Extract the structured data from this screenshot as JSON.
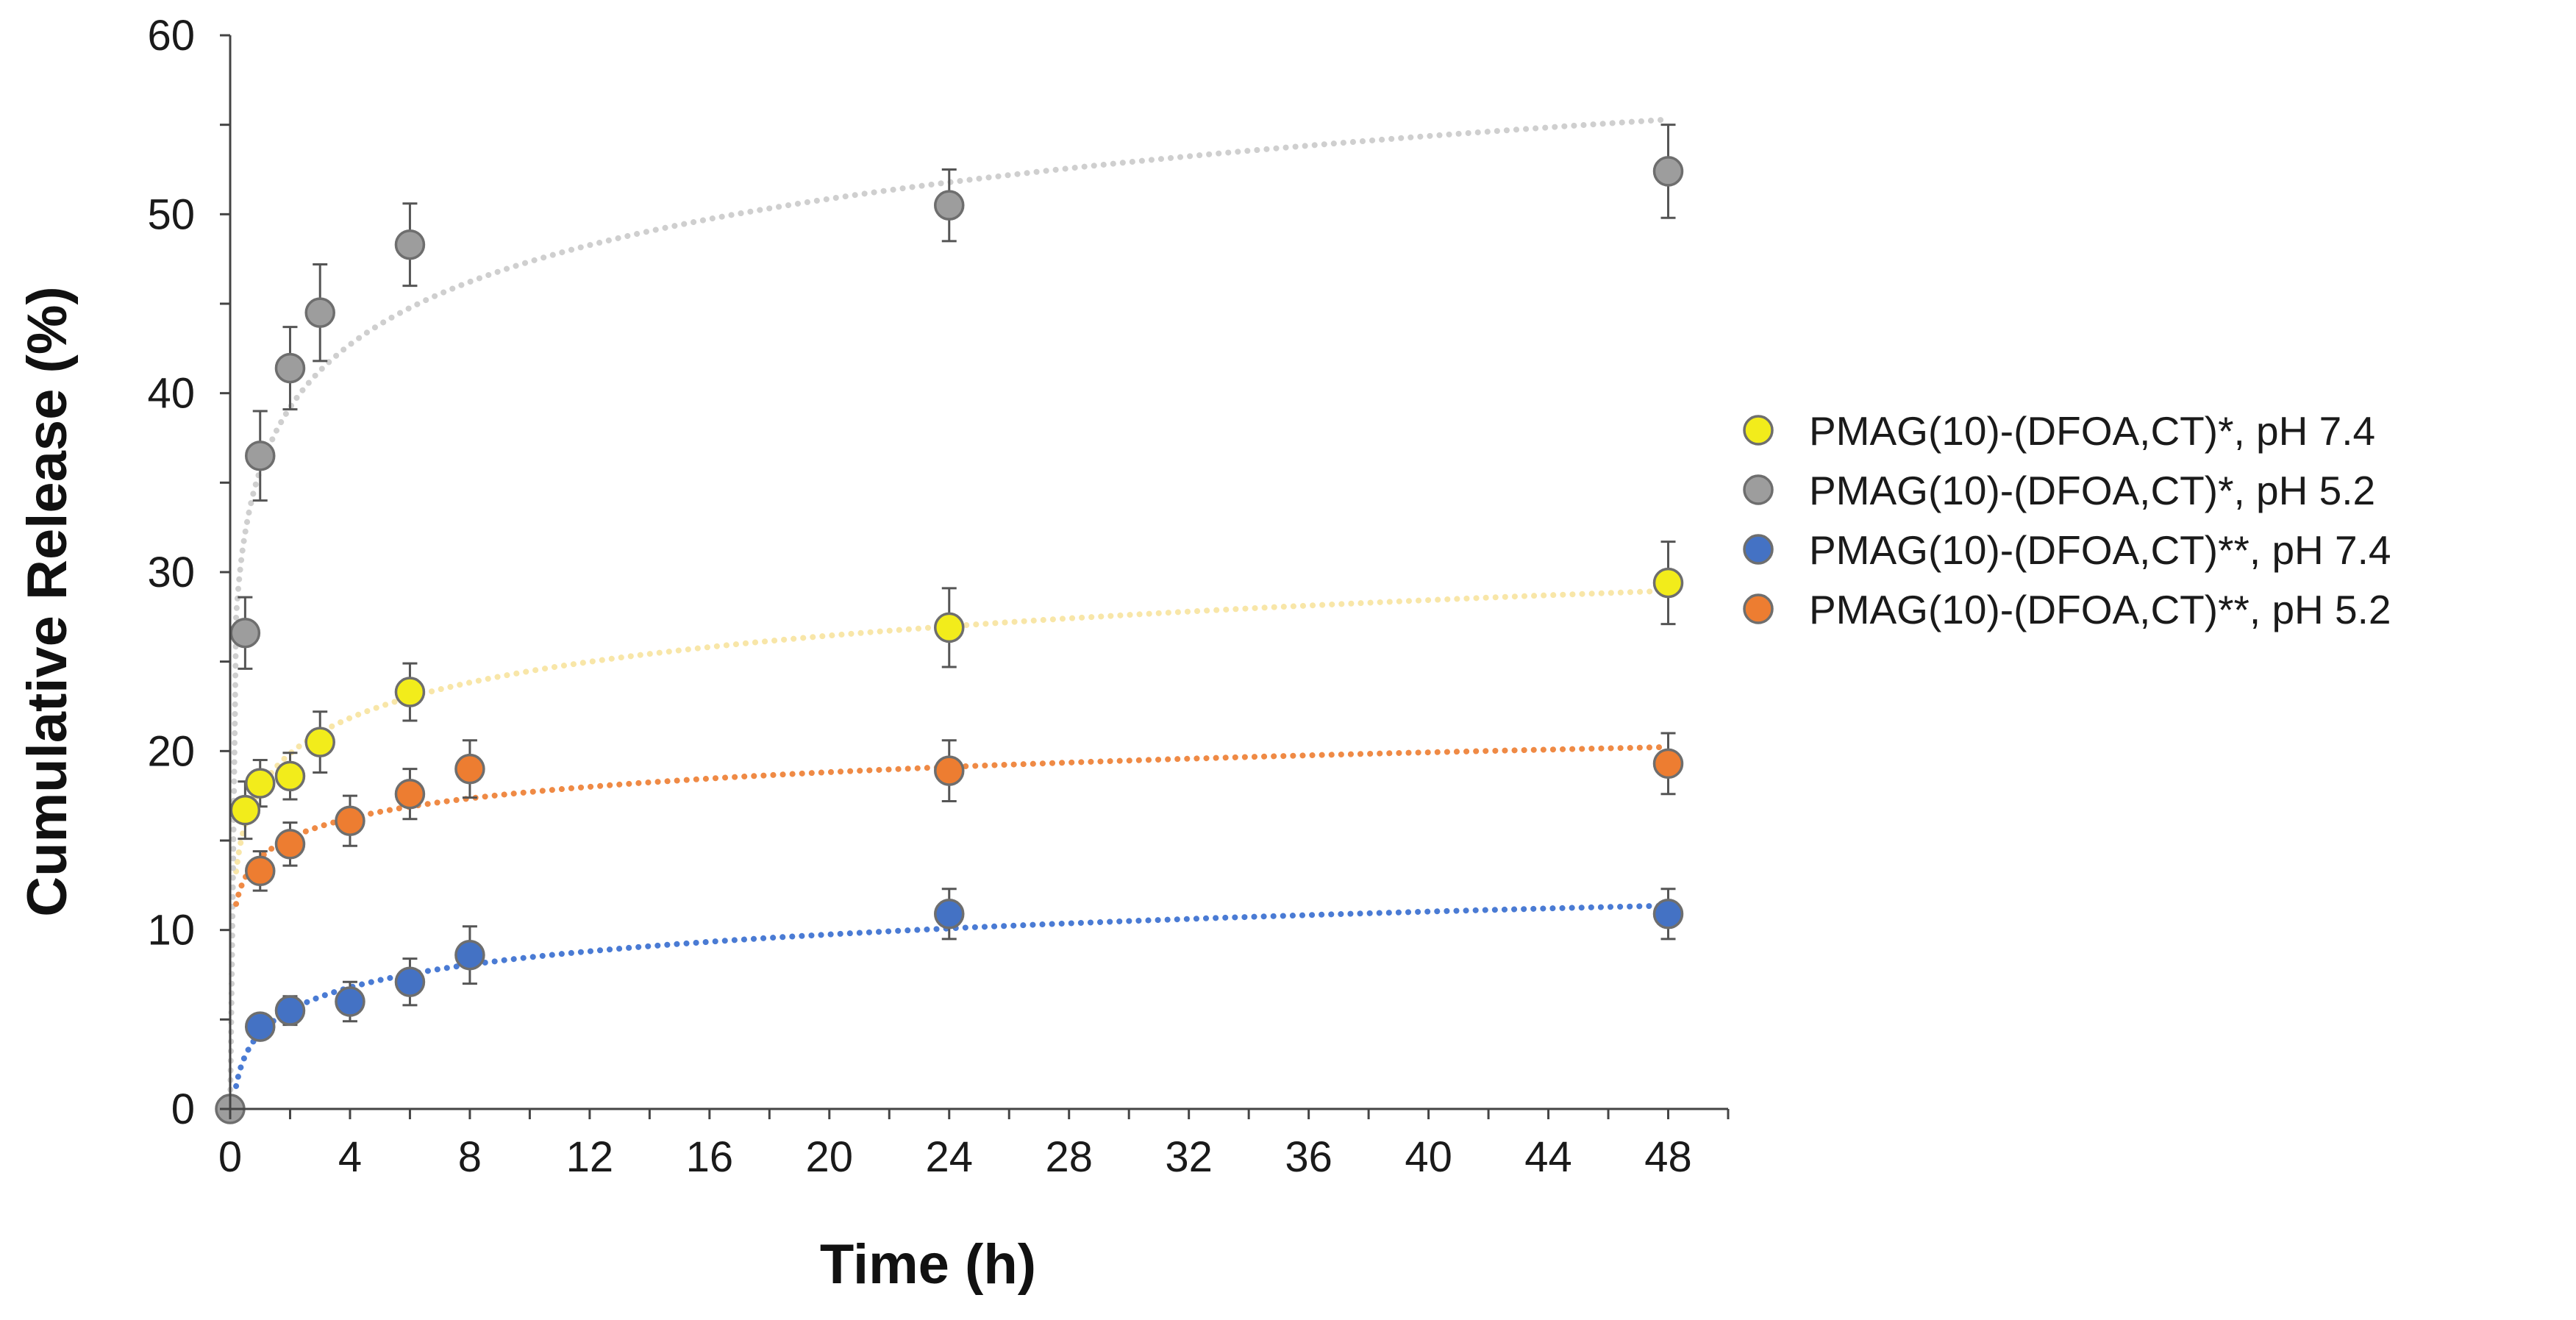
{
  "chart_data": {
    "type": "scatter",
    "title": "",
    "xlabel": "Time (h)",
    "ylabel": "Cumulative Release (%)",
    "xlim": [
      0,
      50
    ],
    "ylim": [
      0,
      60
    ],
    "xticks": [
      "0",
      "4",
      "8",
      "12",
      "16",
      "20",
      "24",
      "28",
      "32",
      "36",
      "40",
      "44",
      "48"
    ],
    "yticks": [
      "0",
      "10",
      "20",
      "30",
      "40",
      "50",
      "60"
    ],
    "legend_position": "right",
    "series": [
      {
        "name": "PMAG(10)-(DFOA,CT)*, pH 7.4",
        "color": "#f2ec1b",
        "fit_color": "#f8e6a8",
        "x": [
          0.5,
          1,
          2,
          3,
          6,
          24,
          48
        ],
        "y": [
          16.7,
          18.2,
          18.6,
          20.5,
          23.3,
          26.9,
          29.4
        ],
        "err": [
          1.6,
          1.3,
          1.3,
          1.7,
          1.6,
          2.2,
          2.3
        ]
      },
      {
        "name": "PMAG(10)-(DFOA,CT)*, pH 5.2",
        "color": "#9d9d9d",
        "fit_color": "#cfcfcf",
        "x": [
          0,
          0.5,
          1,
          2,
          3,
          6,
          24,
          48
        ],
        "y": [
          0,
          26.6,
          36.5,
          41.4,
          44.5,
          48.3,
          50.5,
          52.4
        ],
        "err": [
          0,
          2.0,
          2.5,
          2.3,
          2.7,
          2.3,
          2.0,
          2.6
        ]
      },
      {
        "name": "PMAG(10)-(DFOA,CT)**, pH 7.4",
        "color": "#4472c4",
        "fit_color": "#4a7bd4",
        "x": [
          1,
          2,
          4,
          6,
          8,
          24,
          48
        ],
        "y": [
          4.6,
          5.5,
          6.0,
          7.1,
          8.6,
          10.9,
          10.9
        ],
        "err": [
          0.6,
          0.8,
          1.1,
          1.3,
          1.6,
          1.4,
          1.4
        ]
      },
      {
        "name": "PMAG(10)-(DFOA,CT)**, pH 5.2",
        "color": "#ed7d31",
        "fit_color": "#ef8a45",
        "x": [
          1,
          2,
          4,
          6,
          8,
          24,
          48
        ],
        "y": [
          13.3,
          14.8,
          16.1,
          17.6,
          19.0,
          18.9,
          19.3
        ],
        "err": [
          1.1,
          1.2,
          1.4,
          1.4,
          1.6,
          1.7,
          1.7
        ]
      }
    ]
  }
}
